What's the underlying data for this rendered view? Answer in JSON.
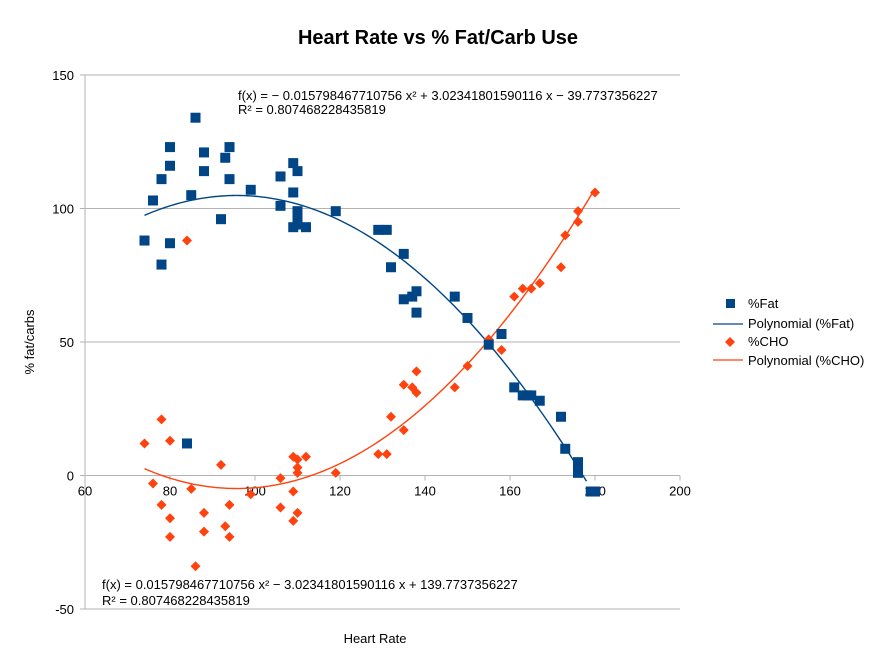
{
  "chart_data": {
    "type": "scatter",
    "title": "Heart Rate vs % Fat/Carb Use",
    "xlabel": "Heart Rate",
    "ylabel": "% fat/carbs",
    "xlim": [
      60,
      200
    ],
    "ylim": [
      -50,
      150
    ],
    "x_ticks": [
      "60",
      "80",
      "100",
      "120",
      "140",
      "160",
      "180",
      "200"
    ],
    "y_ticks": [
      "-50",
      "0",
      "50",
      "100",
      "150"
    ],
    "grid": "horizontal",
    "legend_position": "right",
    "colors": {
      "fat": "#004586",
      "cho": "#ff420e"
    },
    "series": [
      {
        "name": "%Fat",
        "marker": "square",
        "points": [
          [
            74,
            88
          ],
          [
            76,
            103
          ],
          [
            78,
            111
          ],
          [
            78,
            79
          ],
          [
            80,
            123
          ],
          [
            80,
            116
          ],
          [
            80,
            87
          ],
          [
            84,
            12
          ],
          [
            85,
            105
          ],
          [
            86,
            134
          ],
          [
            88,
            121
          ],
          [
            88,
            114
          ],
          [
            92,
            96
          ],
          [
            93,
            119
          ],
          [
            94,
            123
          ],
          [
            94,
            111
          ],
          [
            99,
            107
          ],
          [
            106,
            112
          ],
          [
            106,
            101
          ],
          [
            109,
            117
          ],
          [
            109,
            106
          ],
          [
            109,
            93
          ],
          [
            110,
            114
          ],
          [
            110,
            99
          ],
          [
            110,
            97
          ],
          [
            110,
            94
          ],
          [
            112,
            93
          ],
          [
            119,
            99
          ],
          [
            129,
            92
          ],
          [
            131,
            92
          ],
          [
            132,
            78
          ],
          [
            135,
            83
          ],
          [
            135,
            66
          ],
          [
            137,
            67
          ],
          [
            138,
            69
          ],
          [
            138,
            61
          ],
          [
            147,
            67
          ],
          [
            150,
            59
          ],
          [
            155,
            49
          ],
          [
            158,
            53
          ],
          [
            161,
            33
          ],
          [
            163,
            30
          ],
          [
            164,
            30
          ],
          [
            165,
            30
          ],
          [
            167,
            28
          ],
          [
            172,
            22
          ],
          [
            173,
            10
          ],
          [
            176,
            5
          ],
          [
            176,
            3
          ],
          [
            176,
            1
          ],
          [
            179,
            -6
          ],
          [
            180,
            -6
          ]
        ]
      },
      {
        "name": "Polynomial (%Fat)",
        "fit_coefficients": [
          -0.015798467710756,
          3.02341801590116,
          -39.7737356227
        ],
        "x_range": [
          74,
          178
        ]
      },
      {
        "name": "%CHO",
        "marker": "diamond",
        "points": [
          [
            74,
            12
          ],
          [
            76,
            -3
          ],
          [
            78,
            21
          ],
          [
            78,
            -11
          ],
          [
            80,
            13
          ],
          [
            80,
            -16
          ],
          [
            80,
            -23
          ],
          [
            84,
            88
          ],
          [
            85,
            -5
          ],
          [
            86,
            -34
          ],
          [
            88,
            -14
          ],
          [
            88,
            -21
          ],
          [
            92,
            4
          ],
          [
            93,
            -19
          ],
          [
            94,
            -23
          ],
          [
            94,
            -11
          ],
          [
            99,
            -7
          ],
          [
            106,
            -12
          ],
          [
            106,
            -1
          ],
          [
            109,
            -17
          ],
          [
            109,
            -6
          ],
          [
            109,
            7
          ],
          [
            110,
            -14
          ],
          [
            110,
            1
          ],
          [
            110,
            3
          ],
          [
            110,
            6
          ],
          [
            112,
            7
          ],
          [
            119,
            1
          ],
          [
            129,
            8
          ],
          [
            131,
            8
          ],
          [
            132,
            22
          ],
          [
            135,
            17
          ],
          [
            135,
            34
          ],
          [
            137,
            33
          ],
          [
            138,
            31
          ],
          [
            138,
            39
          ],
          [
            147,
            33
          ],
          [
            150,
            41
          ],
          [
            155,
            51
          ],
          [
            158,
            47
          ],
          [
            161,
            67
          ],
          [
            163,
            70
          ],
          [
            165,
            70
          ],
          [
            167,
            72
          ],
          [
            172,
            78
          ],
          [
            173,
            90
          ],
          [
            176,
            95
          ],
          [
            176,
            99
          ],
          [
            180,
            106
          ]
        ]
      },
      {
        "name": "Polynomial (%CHO)",
        "fit_coefficients": [
          0.015798467710756,
          -3.02341801590116,
          139.7737356227
        ],
        "x_range": [
          74,
          180
        ]
      }
    ],
    "annotations": {
      "fat_equation": "f(x) = − 0.015798467710756 x² + 3.02341801590116 x − 39.7737356227",
      "fat_r2": "R² = 0.807468228435819",
      "cho_equation": "f(x) = 0.015798467710756 x² − 3.02341801590116 x + 139.7737356227",
      "cho_r2": "R² = 0.807468228435819"
    }
  }
}
